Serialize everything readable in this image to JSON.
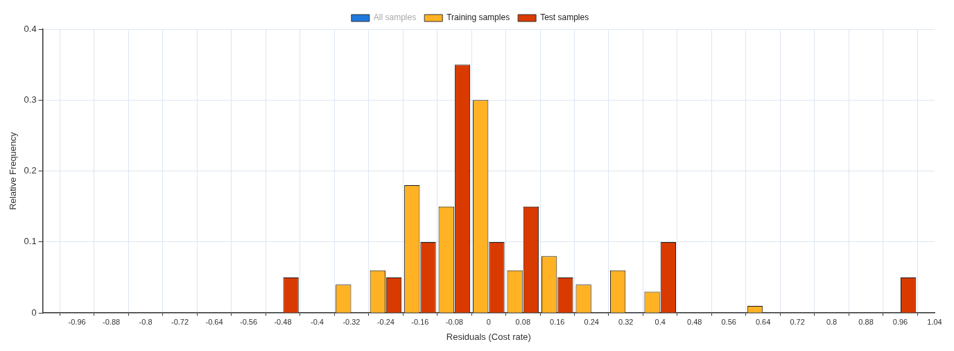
{
  "chart_data": {
    "type": "bar",
    "xlabel": "Residuals (Cost rate)",
    "ylabel": "Relative Frequency",
    "x": [
      -0.48,
      -0.4,
      -0.32,
      -0.24,
      -0.16,
      -0.08,
      0,
      0.08,
      0.16,
      0.24,
      0.32,
      0.4,
      0.48,
      0.56,
      0.64,
      0.72,
      0.8,
      0.88,
      0.96
    ],
    "series": [
      {
        "name": "All samples",
        "color": "#1f78dc",
        "values": [
          null,
          null,
          null,
          null,
          null,
          null,
          null,
          null,
          null,
          null,
          null,
          null,
          null,
          null,
          null,
          null,
          null,
          null,
          null
        ]
      },
      {
        "name": "Training samples",
        "color": "#ffb224",
        "values": [
          null,
          null,
          0.04,
          0.06,
          0.18,
          0.15,
          0.3,
          0.06,
          0.08,
          0.04,
          0.06,
          0.03,
          null,
          null,
          0.01,
          null,
          null,
          null,
          null
        ]
      },
      {
        "name": "Test samples",
        "color": "#d93a00",
        "values": [
          0.05,
          null,
          null,
          0.05,
          0.1,
          0.35,
          0.1,
          0.15,
          0.05,
          null,
          null,
          0.1,
          null,
          null,
          null,
          null,
          null,
          null,
          0.05
        ]
      }
    ],
    "xlim": [
      -1.04,
      1.04
    ],
    "xticks": [
      -0.96,
      -0.88,
      -0.8,
      -0.72,
      -0.64,
      -0.56,
      -0.48,
      -0.4,
      -0.32,
      -0.24,
      -0.16,
      -0.08,
      0,
      0.08,
      0.16,
      0.24,
      0.32,
      0.4,
      0.48,
      0.56,
      0.64,
      0.72,
      0.8,
      0.88,
      0.96,
      1.04
    ],
    "ylim": [
      0,
      0.4
    ],
    "yticks": [
      0,
      0.1,
      0.2,
      0.3,
      0.4
    ],
    "grid": true,
    "legend": "top"
  }
}
